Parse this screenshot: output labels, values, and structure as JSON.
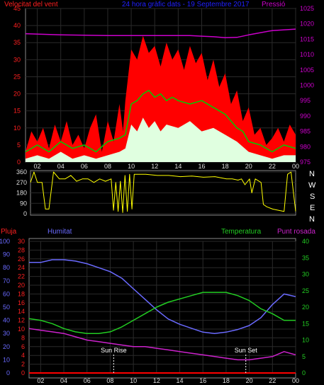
{
  "header": {
    "wind_label": "Velocitat del vent",
    "title": "24 hora gràfic dats - 19 Septembre 2017",
    "pressure_label": "Pressió"
  },
  "dir_letters": [
    "N",
    "W",
    "S",
    "E",
    "N"
  ],
  "bottom_labels": {
    "rain": "Pluja",
    "humidity": "Humitat",
    "temperature": "Temperatura",
    "dewpoint": "Punt rosada"
  },
  "sun": {
    "rise": "Sun Rise",
    "set": "Sun Set"
  },
  "colors": {
    "wind_gust": "#ff0000",
    "wind_avg": "#00cc00",
    "wind_low": "#e0ffe0",
    "pressure": "#cc00cc",
    "direction": "#ffff00",
    "humidity": "#6a6aff",
    "temperature": "#22cc22",
    "dewpoint": "#cc22cc",
    "rain": "#ff0000"
  },
  "chart_data": [
    {
      "type": "line",
      "name": "wind_pressure",
      "x_ticks": [
        "02",
        "04",
        "06",
        "08",
        "10",
        "12",
        "14",
        "16",
        "18",
        "20",
        "22",
        "00"
      ],
      "y_left_ticks": [
        0,
        5,
        10,
        15,
        20,
        25,
        30,
        35,
        40,
        45
      ],
      "y_right_ticks": [
        975,
        980,
        985,
        990,
        995,
        1000,
        1005,
        1010,
        1015,
        1020,
        1025
      ],
      "ylim_left": [
        0,
        45
      ],
      "ylim_right": [
        975,
        1025
      ],
      "xlim": [
        1,
        24
      ],
      "series": [
        {
          "name": "Velocitat del vent",
          "role": "gust",
          "x": [
            1,
            1.5,
            2,
            2.5,
            3,
            3.5,
            4,
            4.5,
            5,
            5.5,
            6,
            6.5,
            7,
            7.5,
            8,
            8.5,
            9,
            9.3,
            9.5,
            10,
            10.5,
            11,
            11.5,
            12,
            12.5,
            13,
            13.5,
            14,
            14.5,
            15,
            15.5,
            16,
            16.5,
            17,
            17.5,
            18,
            18.5,
            19,
            19.5,
            20,
            20.5,
            21,
            21.5,
            22,
            22.5,
            23,
            23.5,
            24
          ],
          "values": [
            3,
            9,
            6,
            10,
            4,
            11,
            6,
            12,
            5,
            8,
            4,
            10,
            14,
            3,
            12,
            6,
            17,
            9,
            18,
            33,
            30,
            37,
            32,
            34,
            28,
            35,
            30,
            33,
            27,
            34,
            29,
            32,
            24,
            30,
            22,
            26,
            17,
            21,
            12,
            16,
            8,
            10,
            5,
            7,
            10,
            6,
            11,
            8
          ]
        },
        {
          "name": "Velocitat del vent",
          "role": "average",
          "x": [
            1,
            2,
            3,
            4,
            5,
            6,
            7,
            8,
            9,
            9.5,
            10,
            10.5,
            11,
            11.5,
            12,
            12.5,
            13,
            13.5,
            14,
            15,
            16,
            17,
            18,
            18.5,
            19,
            19.5,
            20,
            21,
            22,
            23,
            24
          ],
          "values": [
            3,
            5,
            3,
            6,
            4,
            5,
            3,
            6,
            7,
            8,
            17,
            18,
            20,
            21,
            19,
            20,
            18,
            19,
            18,
            17,
            18,
            16,
            14,
            12,
            10,
            9,
            6,
            5,
            3,
            5,
            4
          ]
        },
        {
          "name": "Velocitat del vent",
          "role": "lull",
          "x": [
            1,
            2,
            3,
            4,
            5,
            6,
            7,
            8,
            9,
            9.5,
            10,
            10.5,
            11,
            11.5,
            12,
            12.5,
            13,
            14,
            15,
            16,
            17,
            18,
            19,
            20,
            21,
            22,
            23,
            24
          ],
          "values": [
            1,
            2,
            1,
            3,
            1,
            2,
            1,
            2,
            3,
            4,
            11,
            9,
            13,
            10,
            12,
            9,
            11,
            10,
            12,
            9,
            10,
            8,
            6,
            3,
            2,
            1,
            2,
            2
          ]
        },
        {
          "name": "Pressió",
          "x": [
            1,
            4,
            8,
            12,
            15,
            16,
            17,
            18,
            19,
            20,
            22,
            24
          ],
          "values": [
            1016.8,
            1016.4,
            1016.2,
            1016.2,
            1016.2,
            1016.0,
            1015.8,
            1015.5,
            1015.6,
            1016.4,
            1017.8,
            1018.3
          ]
        }
      ]
    },
    {
      "type": "line",
      "name": "wind_direction",
      "y_ticks": [
        0,
        90,
        180,
        270,
        360
      ],
      "ylim": [
        0,
        360
      ],
      "xlim": [
        1,
        24
      ],
      "series": [
        {
          "name": "direction",
          "x": [
            1,
            1.3,
            1.6,
            2,
            2.3,
            2.6,
            3,
            3.5,
            4,
            4.5,
            5,
            5.5,
            6,
            6.5,
            7,
            7.5,
            8,
            8.2,
            8.4,
            8.6,
            8.8,
            9,
            9.2,
            9.4,
            9.6,
            9.8,
            10,
            11,
            12,
            13,
            14,
            15,
            16,
            17,
            18,
            18.5,
            19,
            19.3,
            19.6,
            20,
            20.2,
            20.5,
            21,
            21.2,
            21.5,
            22,
            22.5,
            23,
            23.3,
            23.6,
            24
          ],
          "values": [
            270,
            360,
            270,
            270,
            40,
            40,
            360,
            300,
            300,
            330,
            280,
            300,
            300,
            270,
            300,
            280,
            300,
            30,
            270,
            20,
            280,
            10,
            330,
            20,
            340,
            40,
            340,
            340,
            330,
            330,
            320,
            325,
            315,
            320,
            300,
            300,
            290,
            300,
            250,
            300,
            180,
            300,
            270,
            80,
            60,
            40,
            30,
            20,
            340,
            360,
            20
          ]
        }
      ]
    },
    {
      "type": "line",
      "name": "humidity_temperature",
      "x_ticks": [
        "02",
        "04",
        "06",
        "08",
        "10",
        "12",
        "14",
        "16",
        "18",
        "20",
        "22",
        "00"
      ],
      "y_hum_ticks": [
        0,
        10,
        20,
        30,
        40,
        50,
        60,
        70,
        80,
        90,
        100
      ],
      "y_rain_ticks": [
        0,
        2,
        4,
        6,
        8,
        10,
        12,
        14,
        16,
        18,
        20,
        22,
        24,
        26,
        28,
        30
      ],
      "y_temp_ticks": [
        0,
        5,
        10,
        15,
        20,
        25,
        30,
        35,
        40
      ],
      "ylim_hum": [
        0,
        100
      ],
      "ylim_rain": [
        0,
        30
      ],
      "ylim_temp": [
        0,
        40
      ],
      "xlim": [
        1,
        24
      ],
      "series": [
        {
          "name": "Humitat",
          "x": [
            1,
            2,
            3,
            4,
            5,
            6,
            7,
            8,
            9,
            10,
            11,
            12,
            13,
            14,
            15,
            16,
            17,
            18,
            19,
            20,
            21,
            22,
            23,
            24
          ],
          "values": [
            84,
            84,
            86,
            86,
            85,
            83,
            80,
            77,
            72,
            64,
            56,
            48,
            41,
            37,
            34,
            31,
            30,
            31,
            33,
            36,
            42,
            52,
            60,
            58
          ]
        },
        {
          "name": "Temperatura",
          "x": [
            1,
            2,
            3,
            4,
            5,
            6,
            7,
            8,
            9,
            10,
            11,
            12,
            13,
            14,
            15,
            16,
            17,
            18,
            19,
            20,
            21,
            22,
            23,
            24
          ],
          "values": [
            16.5,
            16,
            15,
            13.5,
            12.5,
            12,
            12,
            12.5,
            14,
            16,
            18,
            20,
            21.5,
            22.5,
            23.5,
            24.5,
            24.5,
            24.5,
            23.5,
            22,
            19.5,
            18,
            16,
            16
          ]
        },
        {
          "name": "Punt rosada",
          "x": [
            1,
            2,
            3,
            4,
            5,
            6,
            7,
            8,
            9,
            10,
            11,
            12,
            13,
            14,
            15,
            16,
            17,
            18,
            19,
            20,
            21,
            22,
            23,
            24
          ],
          "values": [
            13.5,
            13,
            12.5,
            12,
            11,
            10,
            9.5,
            9,
            8.5,
            8,
            8,
            7.5,
            7,
            6.5,
            6,
            5.5,
            5,
            4.5,
            4,
            4,
            4.5,
            5,
            6.5,
            5.5
          ]
        },
        {
          "name": "Pluja",
          "x": [
            1,
            24
          ],
          "values": [
            0,
            0
          ]
        }
      ],
      "annotations": [
        {
          "label": "Sun Rise",
          "x": 8.3
        },
        {
          "label": "Sun Set",
          "x": 19.7
        }
      ]
    }
  ]
}
